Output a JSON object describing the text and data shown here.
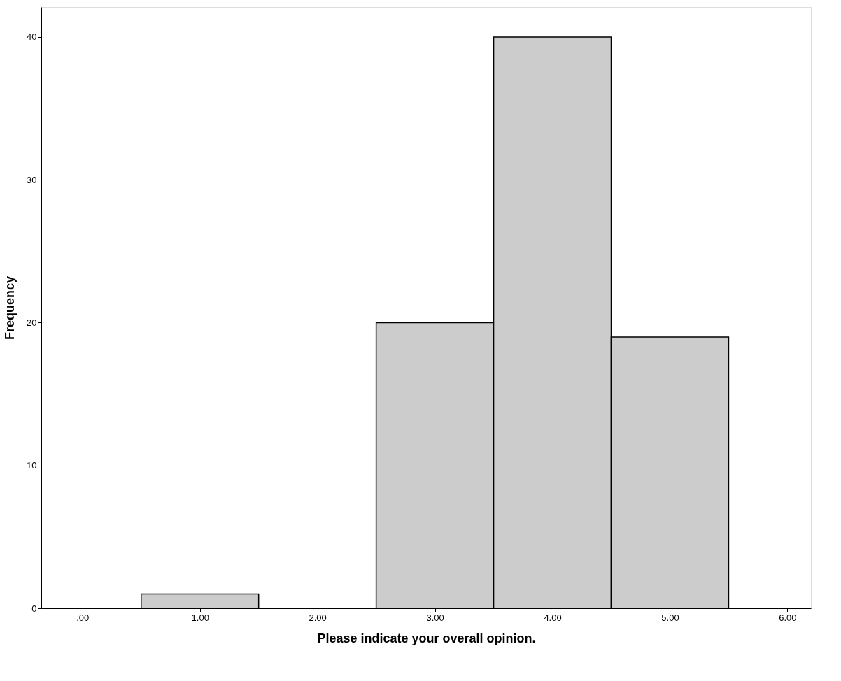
{
  "chart_data": {
    "type": "histogram",
    "xlabel": "Please indicate your overall opinion.",
    "ylabel": "Frequency",
    "bins": [
      0.5,
      1.5,
      2.5,
      3.5,
      4.5,
      5.5
    ],
    "values": [
      1,
      0,
      20,
      40,
      19
    ],
    "color": "#cccccc",
    "xlim": [
      -0.35,
      6.2
    ],
    "ylim": [
      0,
      42.1
    ],
    "xticks": [
      {
        "value": 0,
        "label": ".00"
      },
      {
        "value": 1,
        "label": "1.00"
      },
      {
        "value": 2,
        "label": "2.00"
      },
      {
        "value": 3,
        "label": "3.00"
      },
      {
        "value": 4,
        "label": "4.00"
      },
      {
        "value": 5,
        "label": "5.00"
      },
      {
        "value": 6,
        "label": "6.00"
      }
    ],
    "yticks": [
      0,
      10,
      20,
      30,
      40
    ],
    "grid": false
  }
}
